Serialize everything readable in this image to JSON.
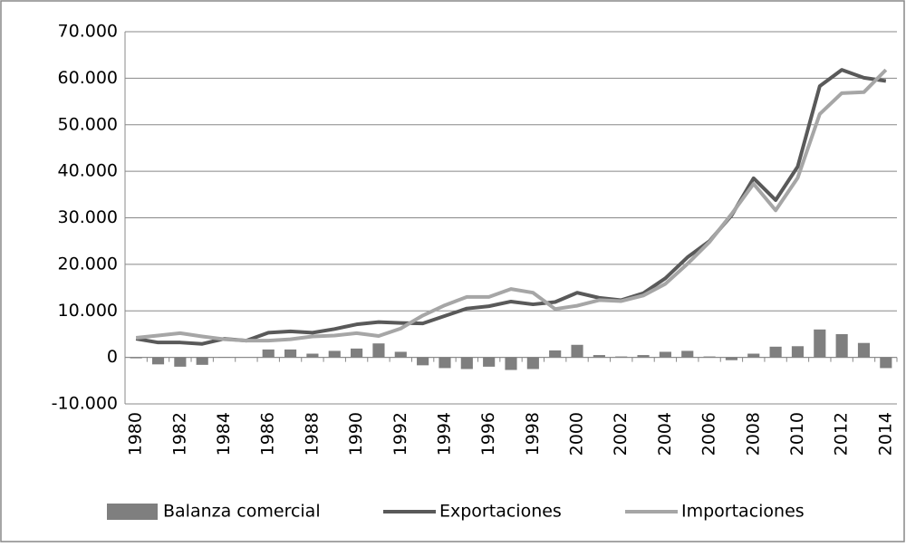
{
  "chart_data": {
    "type": "bar",
    "categories": [
      "1980",
      null,
      "1982",
      null,
      "1984",
      null,
      "1986",
      null,
      "1988",
      null,
      "1990",
      null,
      "1992",
      null,
      "1994",
      null,
      "1996",
      null,
      "1998",
      null,
      "2000",
      null,
      "2002",
      null,
      "2004",
      null,
      "2006",
      null,
      "2008",
      null,
      "2010",
      null,
      "2012",
      null,
      "2014"
    ],
    "series": [
      {
        "name": "Balanza comercial",
        "type": "bar",
        "color": "#7f7f7f",
        "values": [
          -200,
          -1500,
          -2000,
          -1600,
          100,
          0,
          1700,
          1700,
          800,
          1400,
          1900,
          3000,
          1200,
          -1700,
          -2300,
          -2500,
          -2000,
          -2700,
          -2500,
          1500,
          2700,
          500,
          200,
          500,
          1200,
          1400,
          200,
          -600,
          800,
          2300,
          2400,
          6000,
          5000,
          3100,
          -2300
        ]
      },
      {
        "name": "Exportaciones",
        "type": "line",
        "color": "#595959",
        "values": [
          4000,
          3200,
          3200,
          2900,
          4000,
          3600,
          5300,
          5600,
          5300,
          6100,
          7100,
          7600,
          7400,
          7300,
          8900,
          10500,
          11000,
          12000,
          11400,
          11900,
          13900,
          12800,
          12300,
          13800,
          17000,
          21500,
          25000,
          30500,
          38500,
          33800,
          41000,
          58300,
          61800,
          60100,
          59400
        ]
      },
      {
        "name": "Importaciones",
        "type": "line",
        "color": "#a6a6a6",
        "values": [
          4200,
          4700,
          5200,
          4500,
          3900,
          3600,
          3600,
          3900,
          4500,
          4700,
          5200,
          4600,
          6200,
          9000,
          11200,
          13000,
          13000,
          14700,
          13900,
          10400,
          11100,
          12300,
          12100,
          13300,
          15800,
          20100,
          24800,
          30800,
          37300,
          31600,
          38600,
          52300,
          56800,
          57000,
          61800
        ]
      }
    ],
    "ylim": [
      -10000,
      70000
    ],
    "yticks": [
      {
        "value": -10000,
        "label": "-10.000"
      },
      0,
      {
        "value": 10000,
        "label": "10.000"
      },
      {
        "value": 20000,
        "label": "20.000"
      },
      {
        "value": 30000,
        "label": "30.000"
      },
      {
        "value": 40000,
        "label": "40.000"
      },
      {
        "value": 50000,
        "label": "50.000"
      },
      {
        "value": 60000,
        "label": "60.000"
      },
      {
        "value": 70000,
        "label": "70.000"
      }
    ],
    "grid": true,
    "legend": "bottom"
  }
}
